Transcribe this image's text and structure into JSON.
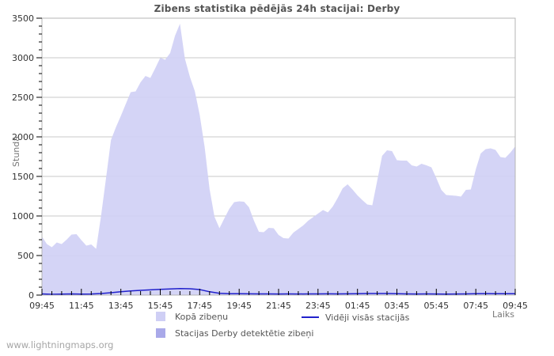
{
  "watermark": "www.lightningmaps.org",
  "colors": {
    "background": "#ffffff",
    "axis_border": "#b4b4b4",
    "gridline": "#c8c8c8",
    "tick": "#000000",
    "tick_label": "#333333",
    "title": "#555555",
    "axis_title": "#777777",
    "watermark": "#a6a6a6"
  },
  "chart_data": {
    "type": "area",
    "title": "Zibens statistika pēdējās 24h stacijai: Derby",
    "xlabel": "Laiks",
    "ylabel": "Stundā",
    "grid": "horizontal-only",
    "legend_position": "bottom",
    "ylim": [
      0,
      3500
    ],
    "y_major_step": 500,
    "y_minor_step": 100,
    "x_range_minutes": [
      0,
      1440
    ],
    "x_major_step_minutes": 120,
    "x_minor_step_minutes": 30,
    "x_tick_labels": [
      "09:45",
      "11:45",
      "13:45",
      "15:45",
      "17:45",
      "19:45",
      "21:45",
      "23:45",
      "01:45",
      "03:45",
      "05:45",
      "07:45",
      "09:45"
    ],
    "series": [
      {
        "name": "Kopā zibeņu",
        "type": "area",
        "color": "#cfcff5",
        "points": [
          [
            0,
            740
          ],
          [
            15,
            645
          ],
          [
            30,
            605
          ],
          [
            45,
            665
          ],
          [
            60,
            645
          ],
          [
            75,
            700
          ],
          [
            90,
            765
          ],
          [
            105,
            770
          ],
          [
            120,
            695
          ],
          [
            135,
            625
          ],
          [
            150,
            640
          ],
          [
            165,
            585
          ],
          [
            180,
            1010
          ],
          [
            195,
            1480
          ],
          [
            210,
            1960
          ],
          [
            225,
            2120
          ],
          [
            240,
            2265
          ],
          [
            255,
            2415
          ],
          [
            270,
            2565
          ],
          [
            285,
            2575
          ],
          [
            300,
            2690
          ],
          [
            315,
            2770
          ],
          [
            330,
            2745
          ],
          [
            345,
            2870
          ],
          [
            360,
            3000
          ],
          [
            375,
            2975
          ],
          [
            390,
            3060
          ],
          [
            405,
            3280
          ],
          [
            420,
            3430
          ],
          [
            435,
            2990
          ],
          [
            450,
            2760
          ],
          [
            465,
            2580
          ],
          [
            480,
            2280
          ],
          [
            495,
            1870
          ],
          [
            510,
            1340
          ],
          [
            525,
            990
          ],
          [
            540,
            845
          ],
          [
            555,
            970
          ],
          [
            570,
            1090
          ],
          [
            585,
            1175
          ],
          [
            600,
            1185
          ],
          [
            615,
            1180
          ],
          [
            630,
            1110
          ],
          [
            645,
            940
          ],
          [
            660,
            800
          ],
          [
            675,
            795
          ],
          [
            690,
            850
          ],
          [
            705,
            845
          ],
          [
            720,
            760
          ],
          [
            735,
            720
          ],
          [
            750,
            715
          ],
          [
            765,
            790
          ],
          [
            780,
            835
          ],
          [
            795,
            880
          ],
          [
            810,
            940
          ],
          [
            825,
            985
          ],
          [
            840,
            1030
          ],
          [
            855,
            1075
          ],
          [
            870,
            1045
          ],
          [
            885,
            1120
          ],
          [
            900,
            1230
          ],
          [
            915,
            1350
          ],
          [
            930,
            1400
          ],
          [
            945,
            1335
          ],
          [
            960,
            1260
          ],
          [
            975,
            1200
          ],
          [
            990,
            1145
          ],
          [
            1005,
            1135
          ],
          [
            1020,
            1445
          ],
          [
            1035,
            1760
          ],
          [
            1050,
            1830
          ],
          [
            1065,
            1820
          ],
          [
            1080,
            1705
          ],
          [
            1095,
            1700
          ],
          [
            1110,
            1700
          ],
          [
            1125,
            1640
          ],
          [
            1140,
            1625
          ],
          [
            1155,
            1660
          ],
          [
            1170,
            1640
          ],
          [
            1185,
            1615
          ],
          [
            1200,
            1480
          ],
          [
            1215,
            1330
          ],
          [
            1230,
            1265
          ],
          [
            1245,
            1260
          ],
          [
            1260,
            1255
          ],
          [
            1275,
            1245
          ],
          [
            1290,
            1330
          ],
          [
            1305,
            1335
          ],
          [
            1320,
            1590
          ],
          [
            1335,
            1790
          ],
          [
            1350,
            1845
          ],
          [
            1365,
            1855
          ],
          [
            1380,
            1835
          ],
          [
            1395,
            1745
          ],
          [
            1410,
            1735
          ],
          [
            1425,
            1800
          ],
          [
            1440,
            1880
          ]
        ]
      },
      {
        "name": "Stacijas Derby detektētie zibeņi",
        "type": "area",
        "color": "#a9a9e9",
        "points": []
      },
      {
        "name": "Vidēji visās stacijās",
        "type": "line",
        "color": "#2121cc",
        "points": [
          [
            0,
            15
          ],
          [
            30,
            10
          ],
          [
            60,
            12
          ],
          [
            90,
            15
          ],
          [
            120,
            12
          ],
          [
            150,
            14
          ],
          [
            180,
            20
          ],
          [
            210,
            30
          ],
          [
            240,
            42
          ],
          [
            270,
            52
          ],
          [
            300,
            60
          ],
          [
            330,
            66
          ],
          [
            360,
            72
          ],
          [
            390,
            78
          ],
          [
            420,
            82
          ],
          [
            450,
            80
          ],
          [
            480,
            70
          ],
          [
            510,
            42
          ],
          [
            540,
            22
          ],
          [
            570,
            18
          ],
          [
            600,
            18
          ],
          [
            630,
            16
          ],
          [
            660,
            15
          ],
          [
            690,
            15
          ],
          [
            720,
            14
          ],
          [
            750,
            15
          ],
          [
            780,
            14
          ],
          [
            810,
            15
          ],
          [
            840,
            15
          ],
          [
            870,
            16
          ],
          [
            900,
            15
          ],
          [
            930,
            16
          ],
          [
            960,
            18
          ],
          [
            990,
            20
          ],
          [
            1020,
            20
          ],
          [
            1050,
            20
          ],
          [
            1080,
            18
          ],
          [
            1110,
            15
          ],
          [
            1140,
            14
          ],
          [
            1170,
            15
          ],
          [
            1200,
            14
          ],
          [
            1230,
            13
          ],
          [
            1260,
            14
          ],
          [
            1290,
            15
          ],
          [
            1320,
            18
          ],
          [
            1350,
            19
          ],
          [
            1380,
            18
          ],
          [
            1410,
            18
          ],
          [
            1440,
            17
          ]
        ]
      }
    ]
  }
}
